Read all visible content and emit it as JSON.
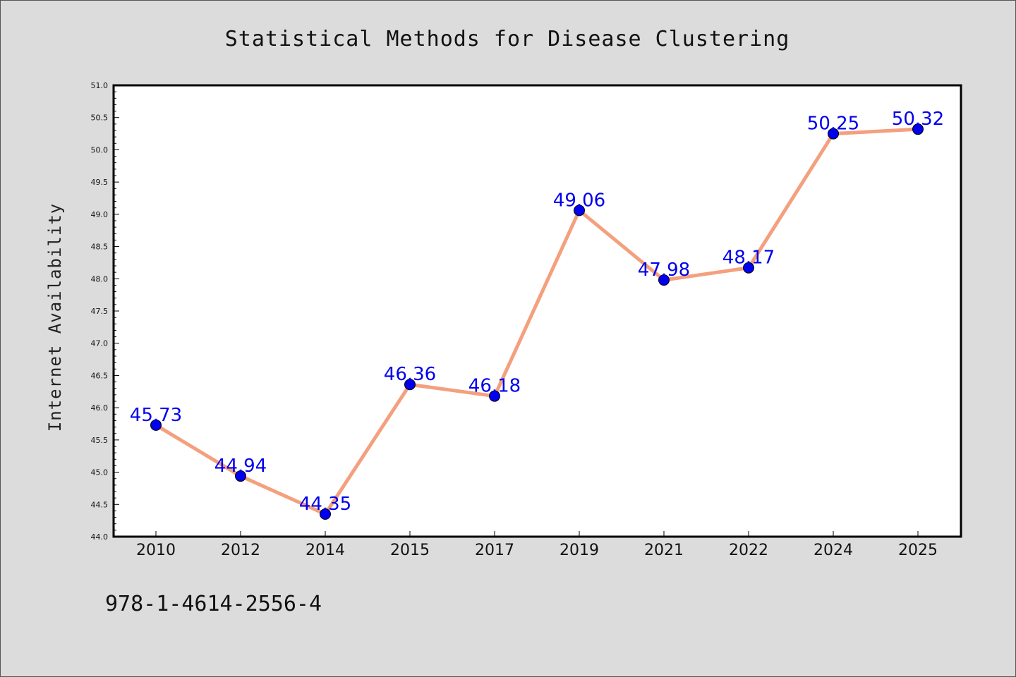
{
  "chart_data": {
    "type": "line",
    "title": "Statistical Methods for Disease Clustering",
    "xlabel": "",
    "ylabel": "Internet Availability",
    "categories": [
      "2010",
      "2012",
      "2014",
      "2015",
      "2017",
      "2019",
      "2021",
      "2022",
      "2024",
      "2025"
    ],
    "series": [
      {
        "values": [
          45.73,
          44.94,
          44.35,
          46.36,
          46.18,
          49.06,
          47.98,
          48.17,
          50.25,
          50.32
        ],
        "data_labels": [
          "45.73",
          "44.94",
          "44.35",
          "46.36",
          "46.18",
          "49.06",
          "47.98",
          "48.17",
          "50.25",
          "50.32"
        ]
      }
    ],
    "ylim": [
      44.0,
      51.0
    ],
    "yticks": [
      "44.0",
      "44.5",
      "45.0",
      "45.5",
      "46.0",
      "46.5",
      "47.0",
      "47.5",
      "48.0",
      "48.5",
      "49.0",
      "49.5",
      "50.0",
      "50.5",
      "51.0"
    ],
    "grid": false,
    "legend": "none",
    "colors": {
      "line": "#f4a07e",
      "marker": "#0000ee",
      "data_label": "#0000ee",
      "plot_background": "#ffffff",
      "figure_background": "#dcdcdc"
    }
  },
  "footnote": "978-1-4614-2556-4"
}
